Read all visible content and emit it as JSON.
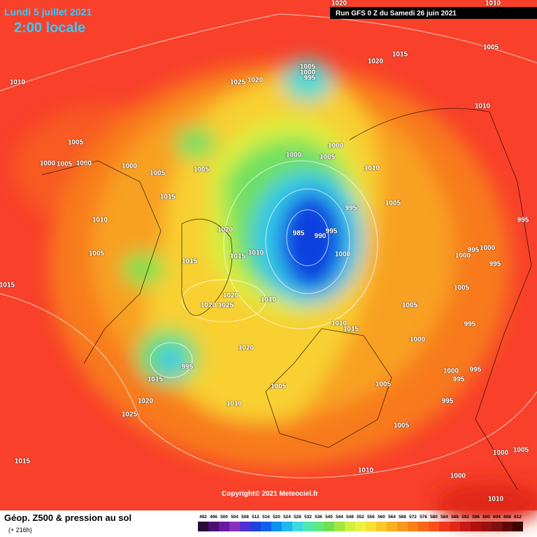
{
  "header": {
    "date": "Lundi 5 juillet 2021",
    "time": "2:00 locale",
    "run": "Run GFS 0 Z du Samedi 26 juin 2021"
  },
  "footer": {
    "title": "Géop. Z500 & pression au sol",
    "subtitle": "(+ 216h)",
    "copyright": "Copyright© 2021 Meteociel.fr"
  },
  "legend": {
    "values": [
      492,
      496,
      500,
      504,
      508,
      512,
      516,
      520,
      524,
      528,
      532,
      536,
      540,
      544,
      548,
      552,
      556,
      560,
      564,
      568,
      572,
      576,
      580,
      584,
      588,
      592,
      596,
      600,
      604,
      608,
      612
    ],
    "colors": [
      "#2a0a3a",
      "#4a1070",
      "#6a1aa0",
      "#8a30c0",
      "#5030d0",
      "#2040e0",
      "#1060f0",
      "#1090f0",
      "#20b8f0",
      "#40d8e0",
      "#50e8b0",
      "#60e880",
      "#70e050",
      "#a0e840",
      "#d0f040",
      "#f0f040",
      "#f8e030",
      "#f8c828",
      "#f8b020",
      "#f89820",
      "#f88018",
      "#f86818",
      "#f85018",
      "#f03818",
      "#e02818",
      "#c81818",
      "#b01010",
      "#981010",
      "#801010",
      "#600808",
      "#400404"
    ]
  },
  "isobar_labels": [
    1020,
    1010,
    1015,
    1020,
    1005,
    1010,
    1005,
    1000,
    995,
    1025,
    1020,
    1010,
    1005,
    1000,
    1005,
    1000,
    1000,
    1005,
    1005,
    1000,
    1000,
    1005,
    1010,
    995,
    1005,
    995,
    1015,
    1010,
    1020,
    985,
    990,
    995,
    1010,
    1015,
    1000,
    1015,
    1005,
    995,
    1000,
    1000,
    995,
    1015,
    1010,
    1025,
    1020,
    1020,
    1005,
    1005,
    1010,
    1015,
    995,
    1000,
    1020,
    995,
    1015,
    1000,
    995,
    995,
    1005,
    1005,
    995,
    1010,
    1020,
    1025,
    1005,
    1015,
    1005,
    1000,
    1010,
    1000,
    1010
  ]
}
